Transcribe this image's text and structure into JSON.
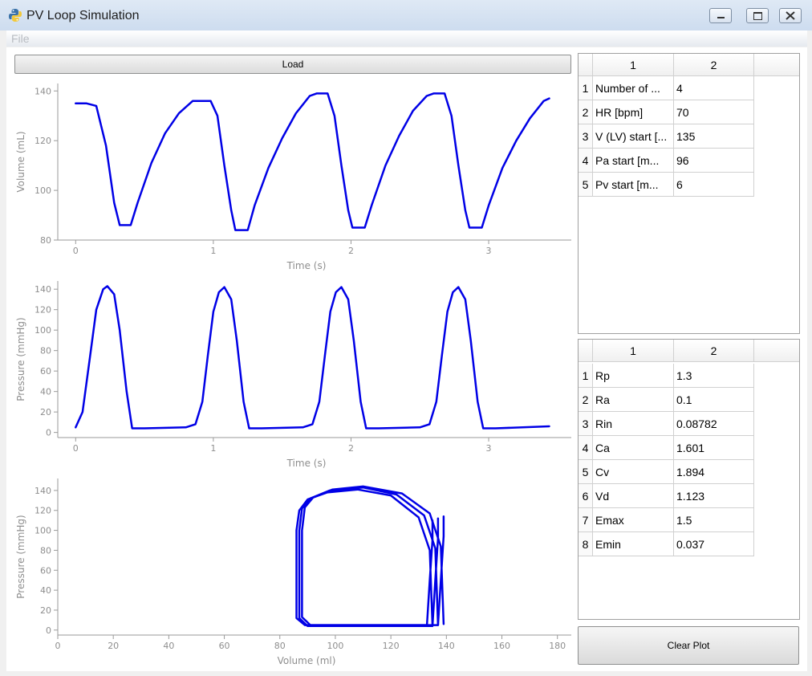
{
  "window": {
    "title": "PV Loop Simulation",
    "menu": [
      "File"
    ],
    "controls": [
      "minimize",
      "maximize",
      "close"
    ]
  },
  "toolbar": {
    "load_label": "Load",
    "clear_label": "Clear Plot"
  },
  "colors": {
    "trace": "#0000e6",
    "axis": "#9a9a9a",
    "text": "#8e8e8e"
  },
  "settings_table": {
    "columns": [
      "1",
      "2"
    ],
    "rows": [
      {
        "idx": "1",
        "name": "Number of ...",
        "value": "4"
      },
      {
        "idx": "2",
        "name": "HR [bpm]",
        "value": "70"
      },
      {
        "idx": "3",
        "name": "V (LV) start [...",
        "value": "135"
      },
      {
        "idx": "4",
        "name": "Pa start [m...",
        "value": "96"
      },
      {
        "idx": "5",
        "name": "Pv start [m...",
        "value": "6"
      }
    ]
  },
  "params_table": {
    "columns": [
      "1",
      "2"
    ],
    "rows": [
      {
        "idx": "1",
        "name": "Rp",
        "value": "1.3"
      },
      {
        "idx": "2",
        "name": "Ra",
        "value": "0.1"
      },
      {
        "idx": "3",
        "name": "Rin",
        "value": "0.08782"
      },
      {
        "idx": "4",
        "name": "Ca",
        "value": "1.601"
      },
      {
        "idx": "5",
        "name": "Cv",
        "value": "1.894"
      },
      {
        "idx": "6",
        "name": "Vd",
        "value": "1.123"
      },
      {
        "idx": "7",
        "name": "Emax",
        "value": "1.5"
      },
      {
        "idx": "8",
        "name": "Emin",
        "value": "0.037"
      }
    ]
  },
  "chart_data": [
    {
      "type": "line",
      "xlabel": "Time (s)",
      "ylabel": "Volume (mL)",
      "xlim": [
        -0.13,
        3.6
      ],
      "ylim": [
        80,
        143
      ],
      "xticks": [
        0,
        1,
        2,
        3
      ],
      "yticks": [
        80,
        100,
        120,
        140
      ],
      "series": [
        {
          "x": [
            0,
            0.08,
            0.15,
            0.22,
            0.28,
            0.32,
            0.4,
            0.45,
            0.55,
            0.65,
            0.75,
            0.85,
            0.88,
            0.98,
            1.03,
            1.08,
            1.13,
            1.16,
            1.25,
            1.3,
            1.4,
            1.5,
            1.6,
            1.7,
            1.75,
            1.83,
            1.88,
            1.93,
            1.98,
            2.01,
            2.1,
            2.15,
            2.25,
            2.35,
            2.45,
            2.55,
            2.6,
            2.68,
            2.73,
            2.78,
            2.83,
            2.86,
            2.95,
            3.0,
            3.1,
            3.2,
            3.3,
            3.4,
            3.44
          ],
          "y": [
            135,
            135,
            134,
            118,
            95,
            86,
            86,
            95,
            111,
            123,
            131,
            136,
            136,
            136,
            130,
            110,
            92,
            84,
            84,
            94,
            109,
            121,
            131,
            138,
            139,
            139,
            130,
            110,
            92,
            85,
            85,
            94,
            110,
            122,
            132,
            138,
            139,
            139,
            130,
            110,
            92,
            85,
            85,
            94,
            109,
            120,
            129,
            136,
            137
          ]
        }
      ]
    },
    {
      "type": "line",
      "xlabel": "Time (s)",
      "ylabel": "Pressure (mmHg)",
      "xlim": [
        -0.13,
        3.6
      ],
      "ylim": [
        -5,
        148
      ],
      "xticks": [
        0,
        1,
        2,
        3
      ],
      "yticks": [
        0,
        20,
        40,
        60,
        80,
        100,
        120,
        140
      ],
      "series": [
        {
          "x": [
            0,
            0.05,
            0.1,
            0.15,
            0.2,
            0.23,
            0.28,
            0.32,
            0.37,
            0.41,
            0.5,
            0.8,
            0.87,
            0.92,
            0.96,
            1.0,
            1.04,
            1.08,
            1.13,
            1.17,
            1.22,
            1.26,
            1.35,
            1.65,
            1.72,
            1.77,
            1.81,
            1.85,
            1.89,
            1.93,
            1.98,
            2.02,
            2.07,
            2.11,
            2.2,
            2.5,
            2.57,
            2.62,
            2.66,
            2.7,
            2.74,
            2.78,
            2.83,
            2.87,
            2.92,
            2.96,
            3.05,
            3.44
          ],
          "y": [
            5,
            20,
            70,
            120,
            140,
            143,
            135,
            100,
            40,
            4,
            4,
            5,
            8,
            30,
            75,
            118,
            137,
            142,
            130,
            90,
            30,
            4,
            4,
            5,
            8,
            30,
            75,
            118,
            137,
            142,
            130,
            90,
            30,
            4,
            4,
            5,
            8,
            30,
            75,
            118,
            137,
            142,
            130,
            90,
            30,
            4,
            4,
            6
          ]
        }
      ]
    },
    {
      "type": "line",
      "xlabel": "Volume (ml)",
      "ylabel": "Pressure (mmHg)",
      "xlim": [
        0,
        185
      ],
      "ylim": [
        -5,
        152
      ],
      "xticks": [
        0,
        20,
        40,
        60,
        80,
        100,
        120,
        140,
        160,
        180
      ],
      "yticks": [
        0,
        20,
        40,
        60,
        80,
        100,
        120,
        140
      ],
      "series": [
        {
          "x": [
            135,
            134,
            130,
            120,
            108,
            97,
            90,
            87,
            86,
            86,
            89,
            100,
            120,
            133,
            134,
            135,
            135
          ],
          "y": [
            5,
            80,
            113,
            135,
            141,
            138,
            131,
            120,
            100,
            12,
            5,
            5,
            5,
            5,
            50,
            90,
            110
          ]
        },
        {
          "x": [
            137,
            136,
            132,
            122,
            110,
            98,
            91,
            88,
            87,
            87,
            90,
            100,
            120,
            135,
            136,
            137,
            137
          ],
          "y": [
            5,
            82,
            115,
            136,
            143,
            140,
            132,
            122,
            100,
            12,
            4,
            4,
            4,
            4,
            50,
            92,
            112
          ]
        },
        {
          "x": [
            139,
            138,
            134,
            124,
            110,
            99,
            92,
            89,
            88,
            88,
            91,
            100,
            120,
            137,
            138,
            139,
            139
          ],
          "y": [
            6,
            84,
            117,
            137,
            144,
            141,
            133,
            123,
            100,
            13,
            5,
            5,
            5,
            5,
            50,
            94,
            114
          ]
        }
      ]
    }
  ]
}
